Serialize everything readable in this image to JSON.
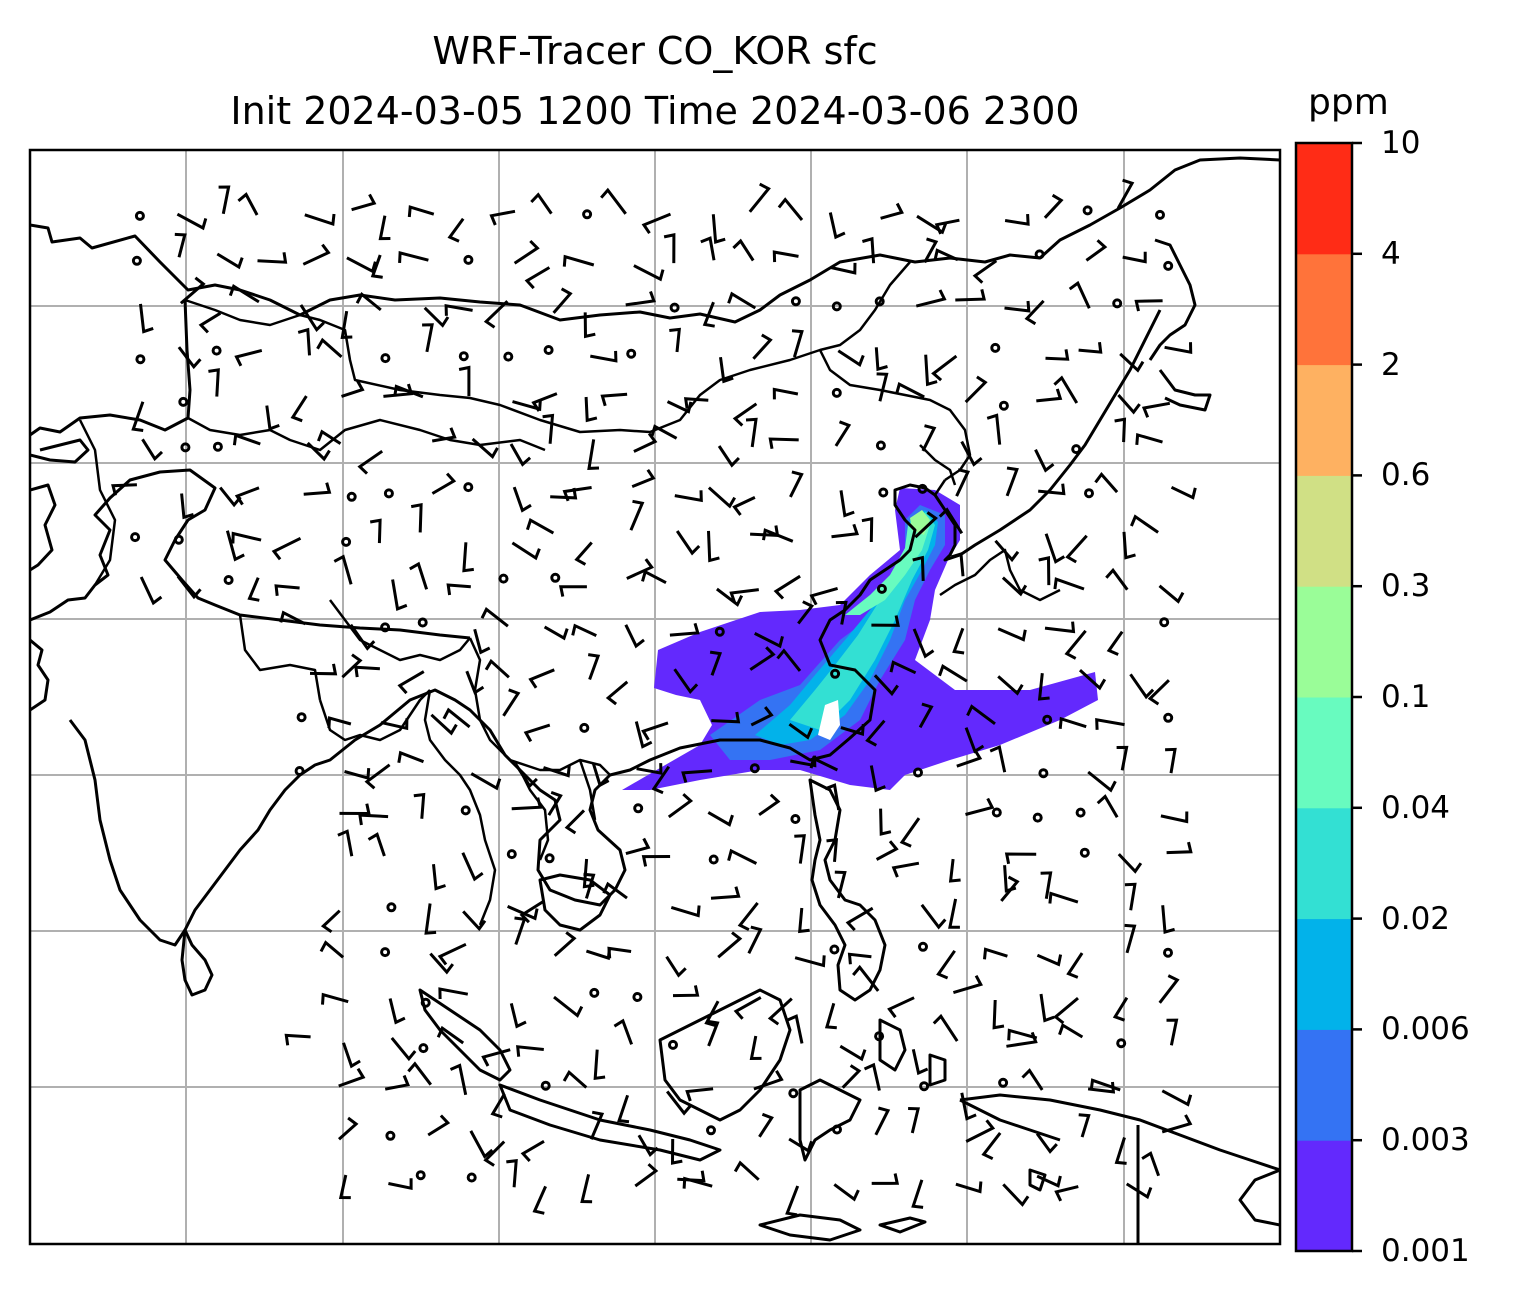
{
  "title": {
    "line1": "WRF-Tracer CO_KOR sfc",
    "line2": "Init 2024-03-05 1200 Time 2024-03-06 2300"
  },
  "colorbar": {
    "unit": "ppm",
    "levels": [
      {
        "label": "0.001",
        "color": "#6329fd"
      },
      {
        "label": "0.003",
        "color": "#3473f3"
      },
      {
        "label": "0.006",
        "color": "#02b2ea"
      },
      {
        "label": "0.02",
        "color": "#33e0d3"
      },
      {
        "label": "0.04",
        "color": "#68fbbf"
      },
      {
        "label": "0.1",
        "color": "#9afd98"
      },
      {
        "label": "0.3",
        "color": "#d0e085"
      },
      {
        "label": "0.6",
        "color": "#feb161"
      },
      {
        "label": "2",
        "color": "#ff733a"
      },
      {
        "label": "4",
        "color": "#ff2c16"
      },
      {
        "label": "10",
        "color": null
      }
    ]
  },
  "map": {
    "gridlines": true,
    "grid_color": "#b0b0b0",
    "coastline_color": "#000000",
    "wind_barb_color": "#000000",
    "layers": [
      "coastlines",
      "country-borders",
      "co-tracer-concentration-contours",
      "surface-wind-barbs"
    ]
  }
}
